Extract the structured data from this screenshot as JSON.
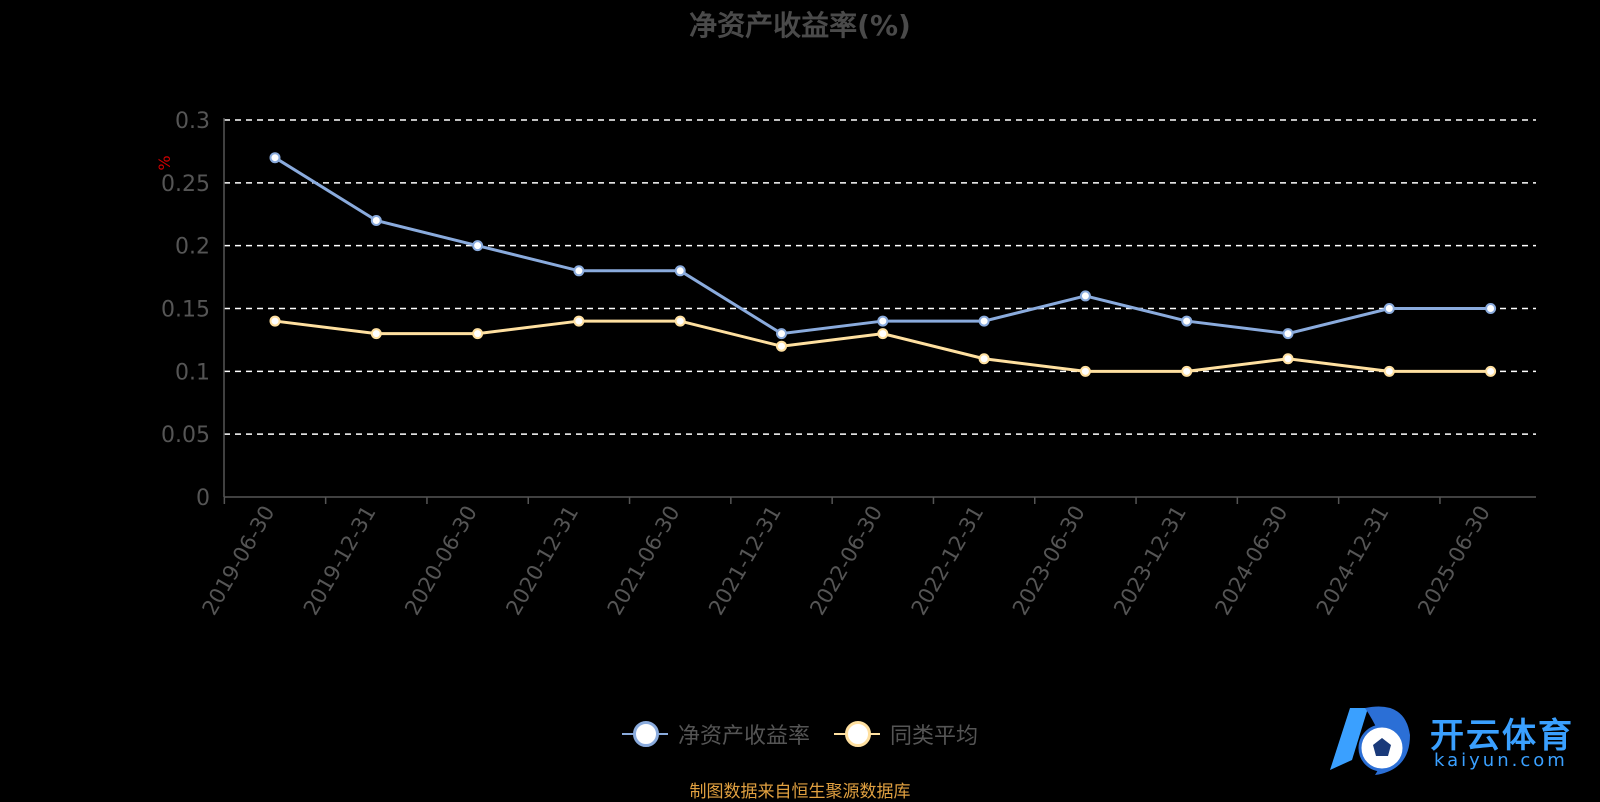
{
  "chart_data": {
    "type": "line",
    "title": "净资产收益率(%)",
    "ylabel": "%",
    "ylim": [
      0,
      0.3
    ],
    "yticks": [
      "0",
      "0.05",
      "0.1",
      "0.15",
      "0.2",
      "0.25",
      "0.3"
    ],
    "categories": [
      "2019-06-30",
      "2019-12-31",
      "2020-06-30",
      "2020-12-31",
      "2021-06-30",
      "2021-12-31",
      "2022-06-30",
      "2022-12-31",
      "2023-06-30",
      "2023-12-31",
      "2024-06-30",
      "2024-12-31",
      "2025-06-30"
    ],
    "series": [
      {
        "name": "净资产收益率",
        "color": "#8aabdd",
        "values": [
          0.27,
          0.22,
          0.2,
          0.18,
          0.18,
          0.13,
          0.14,
          0.14,
          0.16,
          0.14,
          0.13,
          0.15,
          0.15
        ]
      },
      {
        "name": "同类平均",
        "color": "#ffe0a0",
        "values": [
          0.14,
          0.13,
          0.13,
          0.14,
          0.14,
          0.12,
          0.13,
          0.11,
          0.1,
          0.1,
          0.11,
          0.1,
          0.1
        ]
      }
    ],
    "grid": true,
    "legend_position": "bottom-center"
  },
  "source_text": "制图数据来自恒生聚源数据库",
  "logo": {
    "name": "开云体育",
    "sub": "kaiyun.com"
  }
}
